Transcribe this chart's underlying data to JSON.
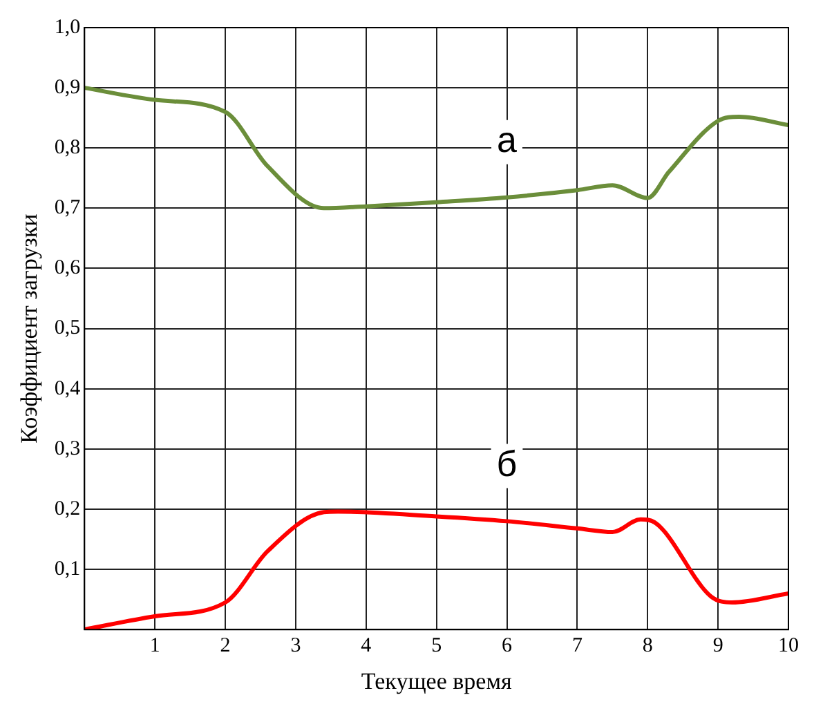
{
  "chart_data": {
    "type": "line",
    "xlabel": "Текущее время",
    "ylabel": "Коэффициент загрузки",
    "xlim": [
      0,
      10
    ],
    "ylim": [
      0,
      1
    ],
    "xticks": [
      {
        "value": 0,
        "label": null
      },
      1,
      2,
      3,
      4,
      5,
      6,
      7,
      8,
      9,
      10
    ],
    "yticks": [
      {
        "value": 0,
        "label": null
      },
      {
        "value": 0.1,
        "label": "0,1"
      },
      {
        "value": 0.2,
        "label": "0,2"
      },
      {
        "value": 0.3,
        "label": "0,3"
      },
      {
        "value": 0.4,
        "label": "0,4"
      },
      {
        "value": 0.5,
        "label": "0,5"
      },
      {
        "value": 0.6,
        "label": "0,6"
      },
      {
        "value": 0.7,
        "label": "0,7"
      },
      {
        "value": 0.8,
        "label": "0,8"
      },
      {
        "value": 0.9,
        "label": "0,9"
      },
      {
        "value": 1,
        "label": "1,0"
      }
    ],
    "grid": true,
    "marker": "none",
    "line_style": "solid",
    "series": [
      {
        "name": "а",
        "color": "#6b8e3a",
        "x": [
          0,
          1,
          2,
          2.6,
          3.4,
          4,
          5,
          6,
          7,
          7.5,
          8,
          8.3,
          9,
          9.3,
          10
        ],
        "values": [
          0.9,
          0.88,
          0.86,
          0.77,
          0.7,
          0.703,
          0.71,
          0.718,
          0.73,
          0.738,
          0.717,
          0.76,
          0.845,
          0.852,
          0.838
        ]
      },
      {
        "name": "б",
        "color": "#ff0000",
        "x": [
          0,
          1,
          2,
          2.6,
          3.4,
          3.6,
          5,
          6,
          7,
          7.5,
          7.9,
          8.1,
          8.9,
          9.2,
          10
        ],
        "values": [
          0,
          0.022,
          0.045,
          0.13,
          0.195,
          0.196,
          0.188,
          0.18,
          0.168,
          0.162,
          0.183,
          0.178,
          0.055,
          0.045,
          0.06
        ]
      }
    ]
  }
}
